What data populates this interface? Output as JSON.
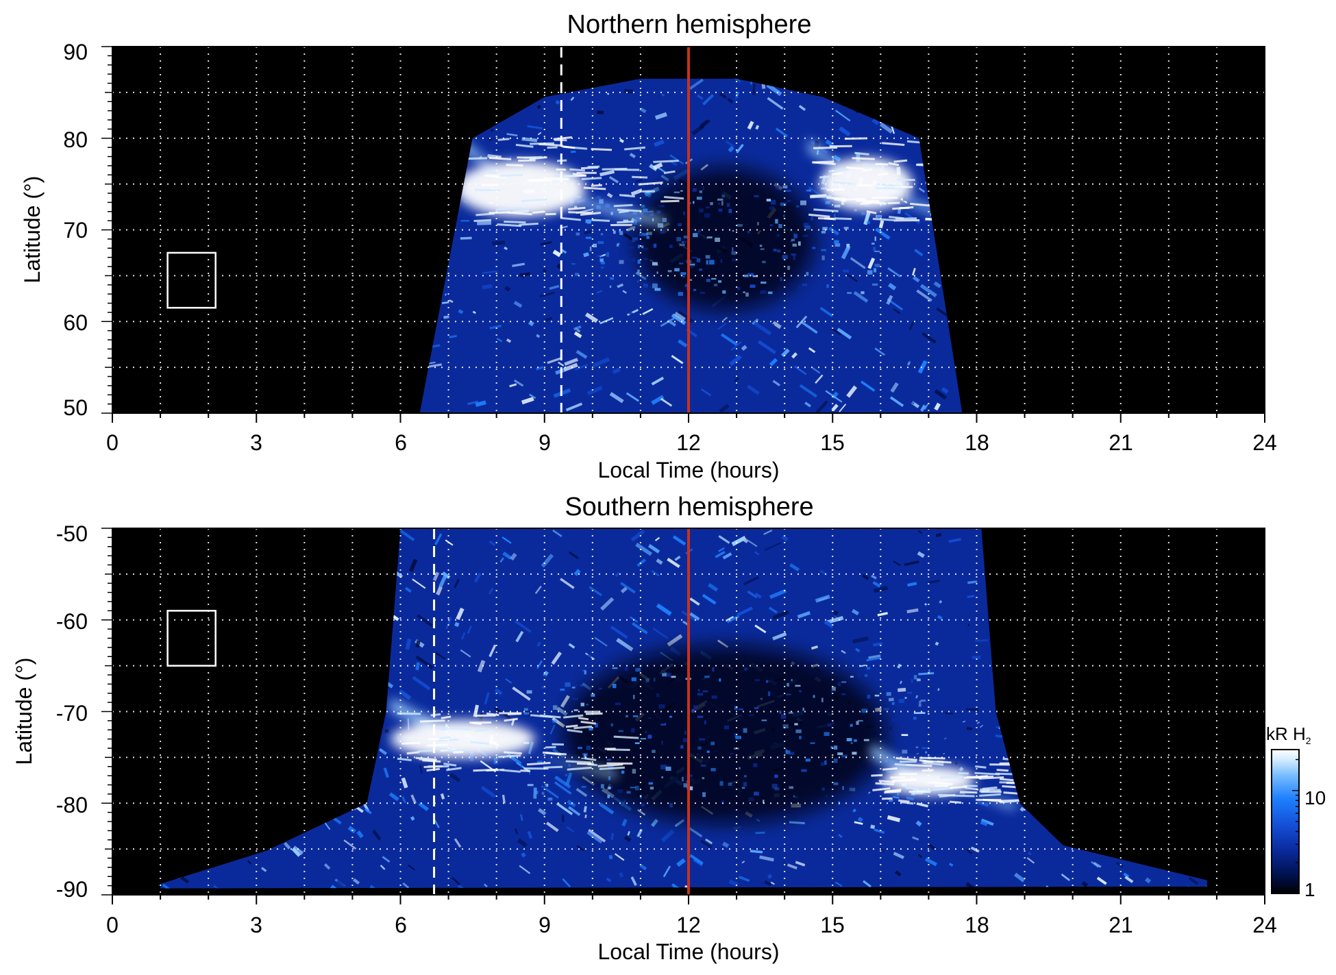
{
  "chart_data": [
    {
      "type": "heatmap",
      "title": "Northern hemisphere",
      "xlabel": "Local Time (hours)",
      "ylabel": "Latitude (°)",
      "xlim": [
        0,
        24
      ],
      "ylim": [
        50,
        90
      ],
      "xticks": [
        "0",
        "3",
        "6",
        "9",
        "12",
        "15",
        "18",
        "21",
        "24"
      ],
      "yticks": [
        "90",
        "80",
        "70",
        "60",
        "50"
      ],
      "grid": true,
      "background": "#000000",
      "coverage": {
        "lt_start_at_lat_50": 6.4,
        "lt_end_at_lat_50": 17.7,
        "lt_start_at_lat_80": 7.5,
        "lt_end_at_lat_80": 16.8,
        "lat_max": 86.5
      },
      "bright_oval": [
        {
          "lt_start": 7.3,
          "lt_end": 11.5,
          "lat_low": 70.5,
          "lat_high": 80.0,
          "peak_lt": 8.5,
          "peak_lat": 74.5
        },
        {
          "lt_start": 14.5,
          "lt_end": 17.5,
          "lat_low": 71.0,
          "lat_high": 80.0,
          "peak_lt": 15.7,
          "peak_lat": 75.0
        }
      ],
      "dark_polar_cap": {
        "lt_start": 11.5,
        "lt_end": 14.0,
        "lat_low": 63.0,
        "lat_high": 75.0
      },
      "noon_line_lt": 12.0,
      "noon_line_color": "#c8321e",
      "dashed_line_lt": 9.35,
      "box": {
        "lt_min": 1.15,
        "lt_max": 2.15,
        "lat_min": 61.5,
        "lat_max": 67.5
      }
    },
    {
      "type": "heatmap",
      "title": "Southern hemisphere",
      "xlabel": "Local Time (hours)",
      "ylabel": "Latitude (°)",
      "xlim": [
        0,
        24
      ],
      "ylim": [
        -90,
        -50
      ],
      "xticks": [
        "0",
        "3",
        "6",
        "9",
        "12",
        "15",
        "18",
        "21",
        "24"
      ],
      "yticks": [
        "-50",
        "-60",
        "-70",
        "-80",
        "-90"
      ],
      "grid": true,
      "background": "#000000",
      "coverage": {
        "lt_start_at_lat_-50": 6.0,
        "lt_end_at_lat_-50": 18.1,
        "lt_start_at_lat_-80": 5.3,
        "lt_end_at_lat_-80": 18.9,
        "lat_min": -89.3,
        "lt_min_near_pole": 1.0,
        "lt_max_near_pole": 22.8
      },
      "bright_oval": [
        {
          "lt_start": 5.8,
          "lt_end": 10.5,
          "lat_low": -76.5,
          "lat_high": -70.0,
          "peak_lt": 7.3,
          "peak_lat": -73.0
        },
        {
          "lt_start": 15.8,
          "lt_end": 18.8,
          "lat_low": -80.0,
          "lat_high": -75.0,
          "peak_lt": 17.0,
          "peak_lat": -77.5
        }
      ],
      "dark_polar_cap": {
        "lt_start": 10.5,
        "lt_end": 15.0,
        "lat_low": -80.0,
        "lat_high": -65.0
      },
      "noon_line_lt": 12.0,
      "noon_line_color": "#c8321e",
      "dashed_line_lt": 6.7,
      "box": {
        "lt_min": 1.15,
        "lt_max": 2.15,
        "lat_min": -65.0,
        "lat_max": -59.0
      }
    }
  ],
  "colorbar": {
    "label_main": "kR H",
    "label_sub": "2",
    "scale": "log",
    "range": [
      1,
      25
    ],
    "tick_labels": [
      "10",
      "1"
    ],
    "ticks": [
      10,
      1
    ],
    "colors": [
      "#000000",
      "#00104a",
      "#0a2a9c",
      "#1450d8",
      "#1e80ff",
      "#78bcff",
      "#d4ecff",
      "#ffffff"
    ]
  }
}
